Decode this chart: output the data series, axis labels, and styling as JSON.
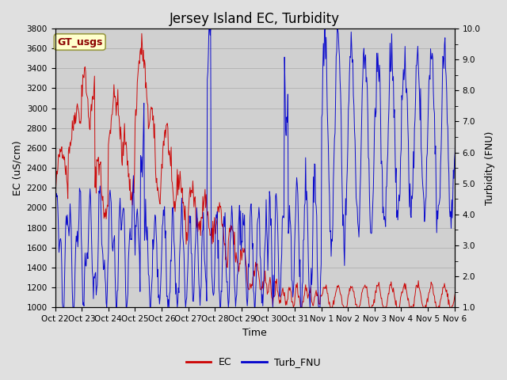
{
  "title": "Jersey Island EC, Turbidity",
  "xlabel": "Time",
  "ylabel_left": "EC (uS/cm)",
  "ylabel_right": "Turbidity (FNU)",
  "ylim_left": [
    1000,
    3800
  ],
  "ylim_right": [
    1.0,
    10.0
  ],
  "yticks_left": [
    1000,
    1200,
    1400,
    1600,
    1800,
    2000,
    2200,
    2400,
    2600,
    2800,
    3000,
    3200,
    3400,
    3600,
    3800
  ],
  "yticks_right": [
    1.0,
    2.0,
    3.0,
    4.0,
    5.0,
    6.0,
    7.0,
    8.0,
    9.0,
    10.0
  ],
  "xtick_labels": [
    "Oct 22",
    "Oct 23",
    "Oct 24",
    "Oct 25",
    "Oct 26",
    "Oct 27",
    "Oct 28",
    "Oct 29",
    "Oct 30",
    "Oct 31",
    "Nov 1",
    "Nov 2",
    "Nov 3",
    "Nov 4",
    "Nov 5",
    "Nov 6"
  ],
  "ec_color": "#cc0000",
  "turb_color": "#0000cc",
  "bg_color": "#e0e0e0",
  "plot_bg_color": "#d0d0d0",
  "annotation_text": "GT_usgs",
  "annotation_bg": "#ffffcc",
  "annotation_border": "#999944",
  "legend_ec": "EC",
  "legend_turb": "Turb_FNU",
  "title_fontsize": 12,
  "axis_label_fontsize": 9,
  "tick_fontsize": 7.5,
  "legend_fontsize": 9
}
